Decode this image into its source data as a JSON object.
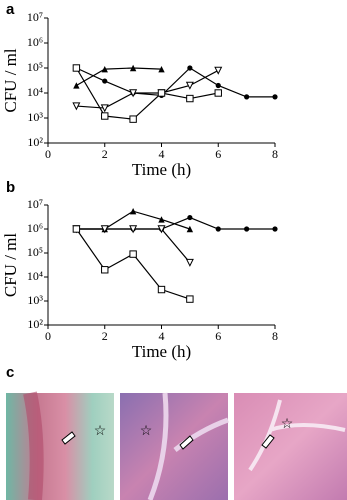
{
  "chart_data": [
    {
      "type": "line",
      "panel": "a",
      "ylabel": "CFU / ml",
      "xlabel": "Time (h)",
      "log": true,
      "x": [
        1,
        2,
        3,
        4,
        5,
        6,
        7,
        8
      ],
      "xlim": [
        0,
        8
      ],
      "xticks": [
        0,
        2,
        4,
        6,
        8
      ],
      "ylim": [
        100,
        10000000
      ],
      "yticks": [
        {
          "value": 100,
          "label": "10²"
        },
        {
          "value": 1000,
          "label": "10³"
        },
        {
          "value": 10000,
          "label": "10⁴"
        },
        {
          "value": 100000,
          "label": "10⁵"
        },
        {
          "value": 1000000,
          "label": "10⁶"
        },
        {
          "value": 10000000,
          "label": "10⁷"
        }
      ],
      "series": [
        {
          "color": "#000000",
          "marker": "circle",
          "values": [
            100000,
            30000,
            10000,
            8000,
            100000,
            20000,
            7000,
            7000
          ]
        },
        {
          "color": "#000000",
          "marker": "triangle",
          "values": [
            20000,
            90000,
            100000,
            90000,
            null,
            null,
            null,
            null
          ]
        },
        {
          "color": "#000000",
          "marker": "triangle-down",
          "values": [
            3000,
            2500,
            10000,
            10000,
            20000,
            80000,
            null,
            null
          ]
        },
        {
          "color": "#000000",
          "marker": "square",
          "values": [
            100000,
            1200,
            900,
            10000,
            6000,
            10000,
            null,
            null
          ]
        }
      ]
    },
    {
      "type": "line",
      "panel": "b",
      "ylabel": "CFU / ml",
      "xlabel": "Time (h)",
      "log": true,
      "x": [
        1,
        2,
        3,
        4,
        5,
        6,
        7,
        8
      ],
      "xlim": [
        0,
        8
      ],
      "xticks": [
        0,
        2,
        4,
        6,
        8
      ],
      "ylim": [
        100,
        10000000
      ],
      "yticks": [
        {
          "value": 100,
          "label": "10²"
        },
        {
          "value": 1000,
          "label": "10³"
        },
        {
          "value": 10000,
          "label": "10⁴"
        },
        {
          "value": 100000,
          "label": "10⁵"
        },
        {
          "value": 1000000,
          "label": "10⁶"
        },
        {
          "value": 10000000,
          "label": "10⁷"
        }
      ],
      "series": [
        {
          "color": "#000000",
          "marker": "circle",
          "values": [
            1000000,
            1000000,
            1000000,
            1000000,
            3000000,
            1000000,
            1000000,
            1000000
          ]
        },
        {
          "color": "#000000",
          "marker": "triangle",
          "values": [
            1000000,
            1000000,
            5500000,
            2500000,
            1000000,
            null,
            null,
            null
          ]
        },
        {
          "color": "#000000",
          "marker": "triangle-down",
          "values": [
            1000000,
            1000000,
            1000000,
            1000000,
            40000,
            null,
            null,
            null
          ]
        },
        {
          "color": "#000000",
          "marker": "square",
          "values": [
            1000000,
            20000,
            90000,
            3000,
            1200,
            null,
            null,
            null
          ]
        }
      ]
    }
  ],
  "histology": {
    "panel": "c"
  }
}
